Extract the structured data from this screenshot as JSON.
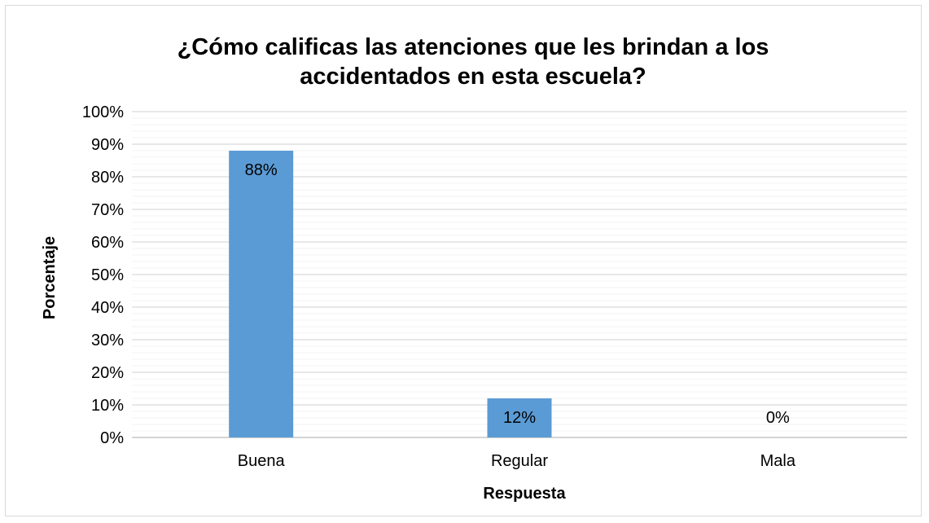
{
  "chart_data": {
    "type": "bar",
    "title_lines": [
      "¿Cómo calificas las atenciones que les brindan a los",
      "accidentados en esta escuela?"
    ],
    "xlabel": "Respuesta",
    "ylabel": "Porcentaje",
    "categories": [
      "Buena",
      "Regular",
      "Mala"
    ],
    "values": [
      88,
      12,
      0
    ],
    "data_labels": [
      "88%",
      "12%",
      "0%"
    ],
    "ylim": [
      0,
      100
    ],
    "yticks": [
      0,
      10,
      20,
      30,
      40,
      50,
      60,
      70,
      80,
      90,
      100
    ],
    "ytick_labels": [
      "0%",
      "10%",
      "20%",
      "30%",
      "40%",
      "50%",
      "60%",
      "70%",
      "80%",
      "90%",
      "100%"
    ],
    "grid": true,
    "legend": "none",
    "bar_color": "#5b9bd5",
    "gridline_color": "#d9d9d9"
  }
}
